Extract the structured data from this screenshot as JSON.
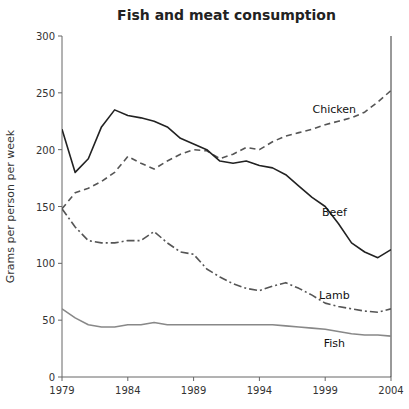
{
  "chart_data": {
    "type": "line",
    "title": "Fish and meat consumption",
    "ylabel": "Grams per person per week",
    "x": [
      1979,
      1980,
      1981,
      1982,
      1983,
      1984,
      1985,
      1986,
      1987,
      1988,
      1989,
      1990,
      1991,
      1992,
      1993,
      1994,
      1995,
      1996,
      1997,
      1998,
      1999,
      2000,
      2001,
      2002,
      2003,
      2004
    ],
    "xlim": [
      1979,
      2004
    ],
    "xticks": [
      1979,
      1984,
      1989,
      1994,
      1999,
      2004
    ],
    "ylim": [
      0,
      300
    ],
    "yticks": [
      0,
      50,
      100,
      150,
      200,
      250,
      300
    ],
    "grid": false,
    "series": [
      {
        "name": "Chicken",
        "color": "#555555",
        "line_style": "dashed",
        "values": [
          148,
          162,
          166,
          172,
          180,
          194,
          188,
          183,
          190,
          196,
          200,
          199,
          192,
          196,
          202,
          200,
          207,
          212,
          215,
          218,
          222,
          225,
          228,
          233,
          242,
          252
        ]
      },
      {
        "name": "Beef",
        "color": "#222222",
        "line_style": "solid",
        "values": [
          218,
          180,
          192,
          220,
          235,
          230,
          228,
          225,
          220,
          210,
          205,
          200,
          190,
          188,
          190,
          186,
          184,
          178,
          168,
          158,
          150,
          135,
          118,
          110,
          105,
          112
        ]
      },
      {
        "name": "Lamb",
        "color": "#555555",
        "line_style": "dashdot",
        "values": [
          148,
          132,
          120,
          118,
          118,
          120,
          120,
          128,
          118,
          110,
          108,
          95,
          88,
          82,
          78,
          76,
          80,
          83,
          78,
          72,
          65,
          62,
          60,
          58,
          57,
          60
        ]
      },
      {
        "name": "Fish",
        "color": "#888888",
        "line_style": "solid",
        "values": [
          60,
          52,
          46,
          44,
          44,
          46,
          46,
          48,
          46,
          46,
          46,
          46,
          46,
          46,
          46,
          46,
          46,
          45,
          44,
          43,
          42,
          40,
          38,
          37,
          37,
          36
        ]
      }
    ]
  }
}
